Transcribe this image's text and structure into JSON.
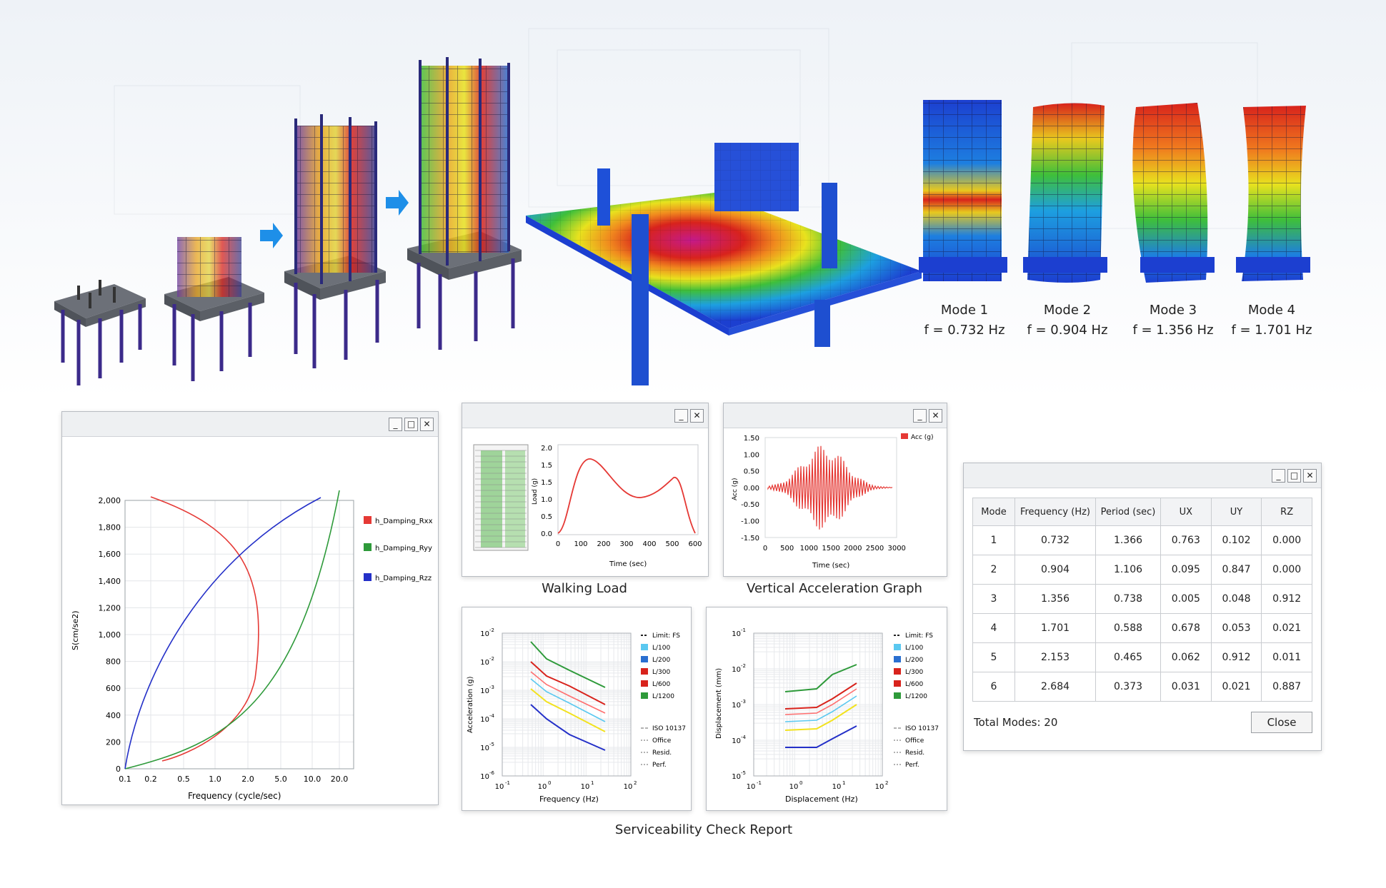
{
  "modes_visual": [
    {
      "label": "Mode 1",
      "freq": "f = 0.732 Hz"
    },
    {
      "label": "Mode 2",
      "freq": "f = 0.904 Hz"
    },
    {
      "label": "Mode 3",
      "freq": "f = 1.356 Hz"
    },
    {
      "label": "Mode 4",
      "freq": "f = 1.701 Hz"
    }
  ],
  "response_spectrum": {
    "ylabel": "S(cm/se2)",
    "xlabel": "Frequency (cycle/sec)",
    "yticks": [
      "2,000",
      "1,800",
      "1,600",
      "1,400",
      "1,200",
      "1,000",
      "800",
      "600",
      "400",
      "200",
      "0"
    ],
    "xticks": [
      "0.1",
      "0.2",
      "0.5",
      "1.0",
      "2.0",
      "5.0",
      "10.0",
      "20.0"
    ],
    "legend": [
      "h_Damping_Rxx",
      "h_Damping_Ryy",
      "h_Damping_Rzz"
    ],
    "colors": [
      "#e53935",
      "#2e9a3a",
      "#2430c8"
    ]
  },
  "walking_load": {
    "title": "Walking Load",
    "ylabel": "Load (g)",
    "xlabel": "Time (sec)",
    "yticks": [
      "2.0",
      "1.5",
      "1.5",
      "1.0",
      "0.5",
      "0.0"
    ],
    "xticks": [
      "0",
      "100",
      "200",
      "300",
      "400",
      "500",
      "600"
    ]
  },
  "vertical_accel": {
    "title": "Vertical Acceleration Graph",
    "ylabel": "Acc (g)",
    "xlabel": "Time (sec)",
    "legend": "Acc (g)",
    "yticks": [
      "1.50",
      "1.00",
      "0.50",
      "0.00",
      "-0.50",
      "-1.00",
      "-1.50"
    ],
    "xticks": [
      "0",
      "500",
      "1000",
      "1500",
      "2000",
      "2500",
      "3000"
    ]
  },
  "accel_check": {
    "ylabel": "Acceleration (g)",
    "xlabel": "Frequency (Hz)",
    "yticks": [
      "10",
      "10",
      "10",
      "10",
      "10",
      "10"
    ],
    "yexp": [
      "-2",
      "-2",
      "-3",
      "-4",
      "-5",
      "-6"
    ],
    "xticks": [
      "10",
      "10",
      "10",
      "10"
    ],
    "xexp": [
      "-1",
      "0",
      "1",
      "2"
    ],
    "legend": [
      "Limit: FS",
      "L/100",
      "L/200",
      "L/300",
      "L/600",
      "L/1200"
    ],
    "legend2": [
      "ISO 10137",
      "Office",
      "Resid.",
      "Perf."
    ]
  },
  "disp_check": {
    "ylabel": "Displacement (mm)",
    "xlabel": "Displacement (Hz)",
    "yticks": [
      "10",
      "10",
      "10",
      "10",
      "10"
    ],
    "yexp": [
      "-1",
      "-2",
      "-3",
      "-4",
      "-5"
    ],
    "xticks": [
      "10",
      "10",
      "10",
      "10"
    ],
    "xexp": [
      "-1",
      "0",
      "1",
      "2"
    ],
    "legend": [
      "Limit: FS",
      "L/100",
      "L/200",
      "L/300",
      "L/600",
      "L/1200"
    ],
    "legend2": [
      "ISO 10137",
      "Office",
      "Resid.",
      "Perf."
    ]
  },
  "report_caption": "Serviceability Check Report",
  "modal_table": {
    "headers": [
      "Mode",
      "Frequency (Hz)",
      "Period (sec)",
      "UX",
      "UY",
      "RZ"
    ],
    "rows": [
      [
        "1",
        "0.732",
        "1.366",
        "0.763",
        "0.102",
        "0.000"
      ],
      [
        "2",
        "0.904",
        "1.106",
        "0.095",
        "0.847",
        "0.000"
      ],
      [
        "3",
        "1.356",
        "0.738",
        "0.005",
        "0.048",
        "0.912"
      ],
      [
        "4",
        "1.701",
        "0.588",
        "0.678",
        "0.053",
        "0.021"
      ],
      [
        "5",
        "2.153",
        "0.465",
        "0.062",
        "0.912",
        "0.011"
      ],
      [
        "6",
        "2.684",
        "0.373",
        "0.031",
        "0.021",
        "0.887"
      ]
    ],
    "total": "Total Modes: 20",
    "close": "Close"
  },
  "window_controls": {
    "minimize": "_",
    "maximize": "□",
    "close": "✕"
  }
}
